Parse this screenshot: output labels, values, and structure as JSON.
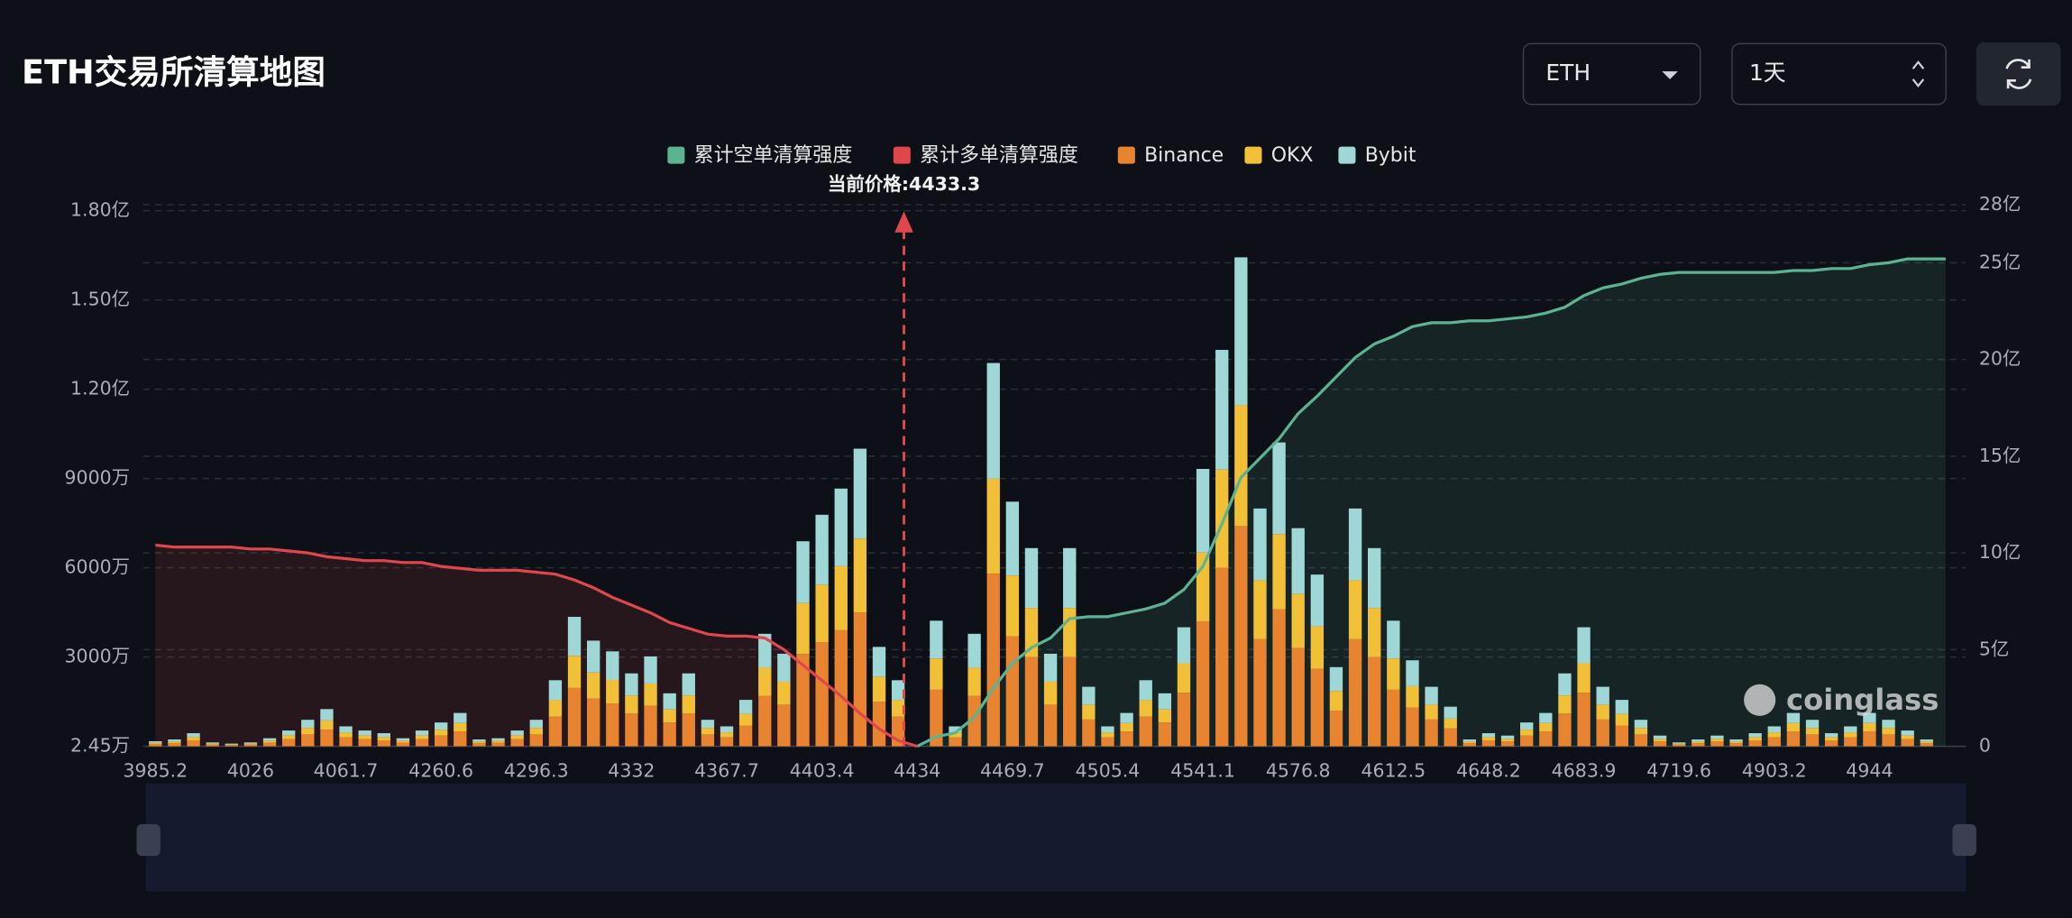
{
  "header": {
    "symbol": "ETH",
    "interval": "1天"
  },
  "watermark": "coinglass",
  "chart_data": {
    "type": "bar",
    "stacked": true,
    "grid": true,
    "legend_position": "top",
    "title": "ETH交易所清算地图",
    "current_price_label": "当前价格:4433.3",
    "categories": [
      "3985.2",
      null,
      null,
      null,
      null,
      "4026",
      null,
      null,
      null,
      null,
      "4061.7",
      null,
      null,
      null,
      null,
      "4260.6",
      null,
      null,
      null,
      null,
      "4296.3",
      null,
      null,
      null,
      null,
      "4332",
      null,
      null,
      null,
      null,
      "4367.7",
      null,
      null,
      null,
      null,
      "4403.4",
      null,
      null,
      null,
      null,
      "4434",
      null,
      null,
      null,
      null,
      "4469.7",
      null,
      null,
      null,
      null,
      "4505.4",
      null,
      null,
      null,
      null,
      "4541.1",
      null,
      null,
      null,
      null,
      "4576.8",
      null,
      null,
      null,
      null,
      "4612.5",
      null,
      null,
      null,
      null,
      "4648.2",
      null,
      null,
      null,
      null,
      "4683.9",
      null,
      null,
      null,
      null,
      "4719.6",
      null,
      null,
      null,
      null,
      "4903.2",
      null,
      null,
      null,
      null,
      "4944",
      null,
      null,
      null,
      null
    ],
    "ylim": [
      24500,
      182000000
    ],
    "yticks": [
      {
        "value": 24500,
        "label": "2.45万"
      },
      {
        "value": 30000000,
        "label": "3000万"
      },
      {
        "value": 60000000,
        "label": "6000万"
      },
      {
        "value": 90000000,
        "label": "9000万"
      },
      {
        "value": 120000000,
        "label": "1.20亿"
      },
      {
        "value": 150000000,
        "label": "1.50亿"
      },
      {
        "value": 180000000,
        "label": "1.80亿"
      }
    ],
    "y2lim": [
      0,
      2800000000
    ],
    "y2ticks": [
      0,
      {
        "value": 500000000,
        "label": "5亿"
      },
      {
        "value": 1000000000,
        "label": "10亿"
      },
      {
        "value": 1500000000,
        "label": "15亿"
      },
      {
        "value": 2000000000,
        "label": "20亿"
      },
      {
        "value": 2500000000,
        "label": "25亿"
      },
      {
        "value": 2800000000,
        "label": "28亿"
      }
    ],
    "series": [
      {
        "name": "累计空单清算强度",
        "type": "line",
        "axis": "y2",
        "color": "#5cb391",
        "values": [
          null,
          null,
          null,
          null,
          null,
          null,
          null,
          null,
          null,
          null,
          null,
          null,
          null,
          null,
          null,
          null,
          null,
          null,
          null,
          null,
          null,
          null,
          null,
          null,
          null,
          null,
          null,
          null,
          null,
          null,
          null,
          null,
          null,
          null,
          null,
          null,
          null,
          null,
          null,
          null,
          0,
          50000000,
          70000000,
          150000000,
          300000000,
          430000000,
          510000000,
          560000000,
          660000000,
          670000000,
          670000000,
          690000000,
          710000000,
          740000000,
          810000000,
          930000000,
          1150000000,
          1390000000,
          1490000000,
          1590000000,
          1720000000,
          1810000000,
          1910000000,
          2010000000,
          2080000000,
          2120000000,
          2170000000,
          2190000000,
          2190000000,
          2200000000,
          2200000000,
          2210000000,
          2220000000,
          2240000000,
          2270000000,
          2330000000,
          2370000000,
          2390000000,
          2420000000,
          2440000000,
          2450000000,
          2450000000,
          2450000000,
          2450000000,
          2450000000,
          2450000000,
          2460000000,
          2460000000,
          2470000000,
          2470000000,
          2490000000,
          2500000000,
          2520000000,
          2520000000,
          2520000000
        ]
      },
      {
        "name": "累计多单清算强度",
        "type": "line",
        "axis": "y2",
        "color": "#e0474c",
        "values": [
          1040000000,
          1030000000,
          1030000000,
          1030000000,
          1030000000,
          1020000000,
          1020000000,
          1010000000,
          1000000000,
          980000000,
          970000000,
          960000000,
          960000000,
          950000000,
          950000000,
          930000000,
          920000000,
          910000000,
          910000000,
          910000000,
          900000000,
          890000000,
          860000000,
          820000000,
          770000000,
          730000000,
          690000000,
          640000000,
          610000000,
          580000000,
          570000000,
          570000000,
          560000000,
          500000000,
          420000000,
          340000000,
          260000000,
          170000000,
          90000000,
          30000000,
          0,
          null,
          null,
          null,
          null,
          null,
          null,
          null,
          null,
          null,
          null,
          null,
          null,
          null,
          null,
          null,
          null,
          null,
          null,
          null,
          null,
          null,
          null,
          null,
          null,
          null,
          null,
          null,
          null,
          null,
          null,
          null,
          null,
          null,
          null,
          null,
          null,
          null,
          null,
          null,
          null,
          null,
          null,
          null,
          null,
          null,
          null,
          null,
          null,
          null,
          null,
          null,
          null,
          null,
          null
        ]
      },
      {
        "name": "Binance",
        "type": "bar",
        "color": "#e8842f",
        "values": [
          800000,
          1000000,
          2000000,
          600000,
          400000,
          600000,
          1200000,
          2400000,
          4000000,
          5600000,
          3000000,
          2400000,
          2000000,
          1200000,
          2400000,
          3600000,
          5000000,
          1000000,
          1200000,
          2400000,
          4000000,
          10000000,
          19600000,
          16000000,
          14400000,
          11000000,
          13600000,
          8000000,
          11000000,
          4000000,
          3000000,
          7000000,
          17000000,
          14000000,
          31000000,
          35000000,
          39000000,
          45000000,
          15000000,
          10000000,
          0,
          19000000,
          3000000,
          17000000,
          58000000,
          37000000,
          30000000,
          14000000,
          30000000,
          9000000,
          3000000,
          5000000,
          10000000,
          8000000,
          18000000,
          42000000,
          60000000,
          74000000,
          36000000,
          46000000,
          33000000,
          26000000,
          12000000,
          36000000,
          30000000,
          19000000,
          13000000,
          9000000,
          6000000,
          1000000,
          2000000,
          1600000,
          3600000,
          5000000,
          11000000,
          18000000,
          9000000,
          7000000,
          4000000,
          1600000,
          600000,
          1000000,
          1600000,
          1000000,
          2000000,
          3000000,
          5000000,
          4000000,
          2000000,
          3000000,
          5000000,
          4000000,
          2400000,
          1000000,
          0
        ]
      },
      {
        "name": "OKX",
        "type": "bar",
        "color": "#f2c037",
        "values": [
          400000,
          600000,
          1100000,
          300000,
          200000,
          300000,
          700000,
          1300000,
          2200000,
          3100000,
          1700000,
          1300000,
          1100000,
          700000,
          1300000,
          2000000,
          2800000,
          600000,
          700000,
          1300000,
          2200000,
          5500000,
          10800000,
          8800000,
          7900000,
          6100000,
          7500000,
          4400000,
          6100000,
          2200000,
          1700000,
          3900000,
          9400000,
          7700000,
          17100000,
          19300000,
          21500000,
          24800000,
          8300000,
          5500000,
          0,
          10500000,
          1700000,
          9400000,
          31900000,
          20400000,
          16500000,
          7700000,
          16500000,
          5000000,
          1700000,
          2800000,
          5500000,
          4400000,
          9900000,
          23100000,
          33000000,
          40700000,
          19800000,
          25300000,
          18200000,
          14300000,
          6600000,
          19800000,
          16500000,
          10500000,
          7200000,
          5000000,
          3300000,
          600000,
          1100000,
          900000,
          2000000,
          2800000,
          6100000,
          9900000,
          5000000,
          3900000,
          2200000,
          900000,
          300000,
          600000,
          900000,
          600000,
          1100000,
          1700000,
          2800000,
          2200000,
          1100000,
          1700000,
          2800000,
          2200000,
          1300000,
          600000,
          0
        ]
      },
      {
        "name": "Bybit",
        "type": "bar",
        "color": "#9fd6d6",
        "values": [
          500000,
          700000,
          1300000,
          400000,
          300000,
          400000,
          800000,
          1600000,
          2700000,
          3800000,
          2000000,
          1600000,
          1300000,
          800000,
          1600000,
          2400000,
          3400000,
          700000,
          800000,
          1600000,
          2700000,
          6700000,
          13100000,
          10700000,
          9600000,
          7400000,
          9100000,
          5400000,
          7400000,
          2700000,
          2000000,
          4700000,
          11400000,
          9400000,
          20800000,
          23500000,
          26100000,
          30200000,
          10100000,
          6700000,
          0,
          12700000,
          2000000,
          11400000,
          38900000,
          24800000,
          20100000,
          9400000,
          20100000,
          6000000,
          2000000,
          3400000,
          6700000,
          5400000,
          12100000,
          28100000,
          40200000,
          49600000,
          24100000,
          30800000,
          22100000,
          17400000,
          8000000,
          24100000,
          20100000,
          12700000,
          8700000,
          6000000,
          4000000,
          700000,
          1300000,
          1100000,
          2400000,
          3400000,
          7400000,
          12100000,
          6000000,
          4700000,
          2700000,
          1100000,
          400000,
          700000,
          1100000,
          700000,
          1300000,
          2000000,
          3400000,
          2700000,
          1300000,
          2000000,
          3400000,
          2700000,
          1600000,
          700000,
          0
        ]
      }
    ]
  }
}
